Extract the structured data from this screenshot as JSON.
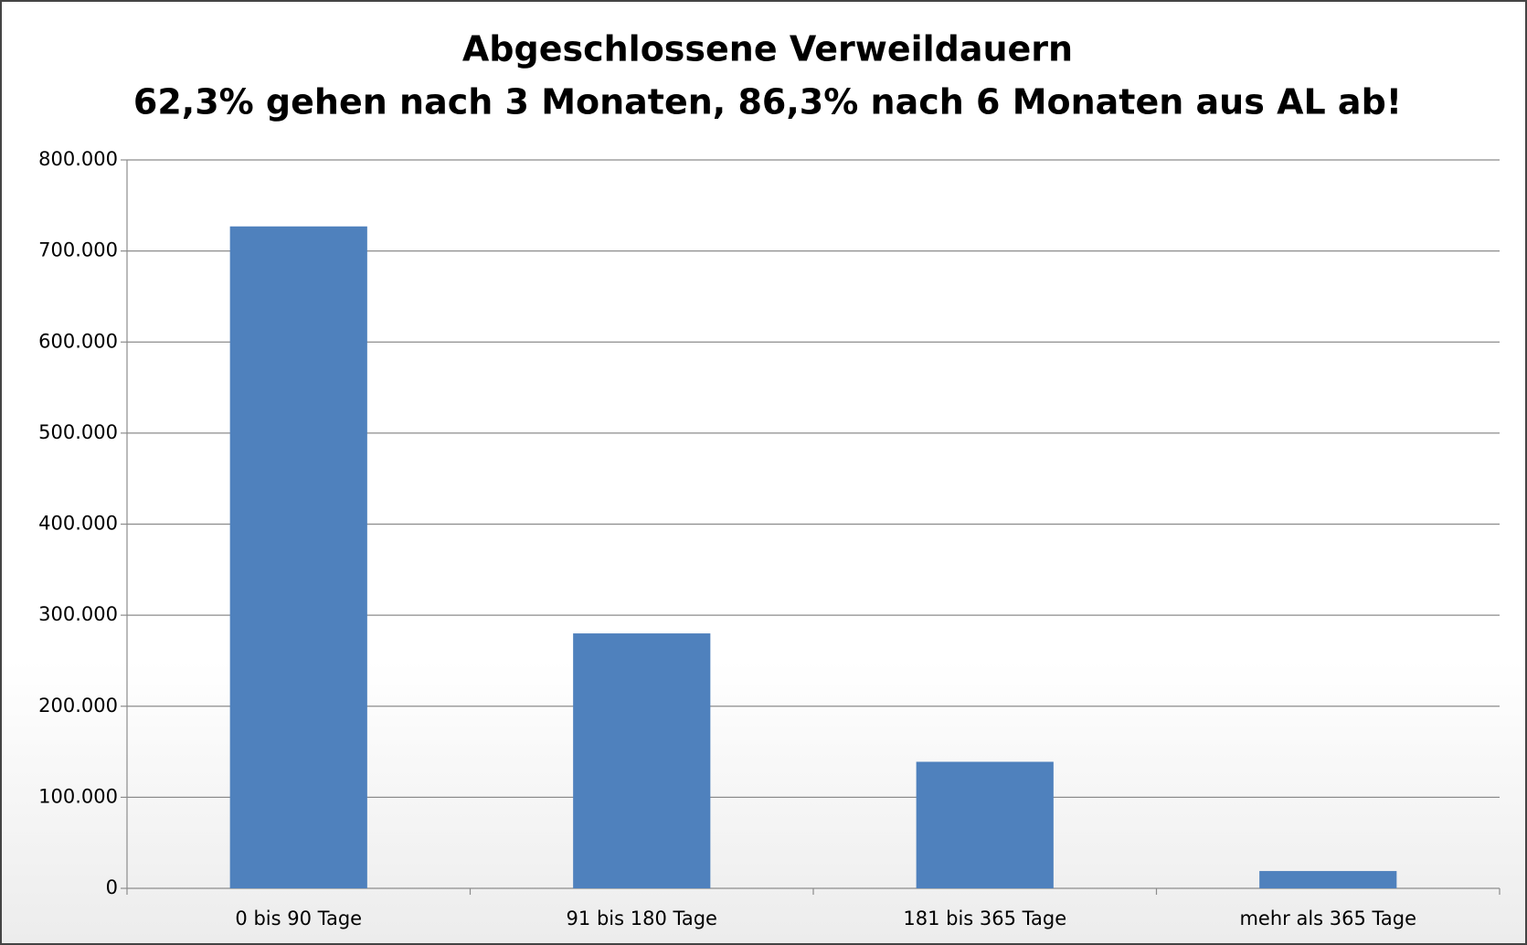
{
  "chart_data": {
    "type": "bar",
    "title": "Abgeschlossene Verweildauern",
    "subtitle": "62,3% gehen nach 3 Monaten, 86,3% nach 6 Monaten aus AL ab!",
    "categories": [
      "0 bis 90 Tage",
      "91 bis 180 Tage",
      "181 bis 365 Tage",
      "mehr als 365 Tage"
    ],
    "values": [
      727000,
      280000,
      139000,
      19000
    ],
    "color": "#4f81bd",
    "ylim": [
      0,
      800000
    ],
    "yticks": [
      0,
      {
        "value": 100000,
        "label": "100.000"
      },
      {
        "value": 200000,
        "label": "200.000"
      },
      {
        "value": 300000,
        "label": "300.000"
      },
      {
        "value": 400000,
        "label": "400.000"
      },
      {
        "value": 500000,
        "label": "500.000"
      },
      {
        "value": 600000,
        "label": "600.000"
      },
      {
        "value": 700000,
        "label": "700.000"
      },
      {
        "value": 800000,
        "label": "800.000"
      }
    ],
    "grid": true
  }
}
